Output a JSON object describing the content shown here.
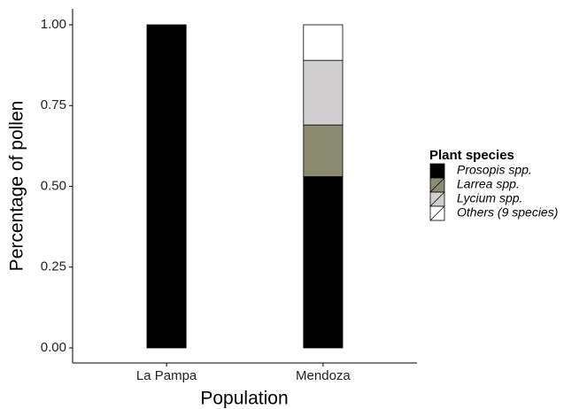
{
  "chart_data": {
    "type": "stacked_bar",
    "x_label": "Population",
    "y_label": "Percentage of pollen",
    "categories": [
      "La Pampa",
      "Mendoza"
    ],
    "legend_title": "Plant species",
    "legend_position": "right",
    "series": [
      {
        "name": "Prosopis spp.",
        "color": "#000000",
        "values": [
          1.0,
          0.53
        ]
      },
      {
        "name": "Larrea spp.",
        "color": "#8b8b6f",
        "values": [
          0,
          0.16
        ]
      },
      {
        "name": "Lycium spp.",
        "color": "#d0cece",
        "values": [
          0,
          0.2
        ]
      },
      {
        "name": "Others (9 species)",
        "color": "#ffffff",
        "values": [
          0,
          0.11
        ]
      }
    ],
    "ylim": [
      0,
      1
    ],
    "yticks": [
      {
        "value": 0,
        "label": "0.00"
      },
      {
        "value": 0.25,
        "label": "0.25"
      },
      {
        "value": 0.5,
        "label": "0.50"
      },
      {
        "value": 0.75,
        "label": "0.75"
      },
      {
        "value": 1,
        "label": "1.00"
      }
    ],
    "grid": false
  }
}
